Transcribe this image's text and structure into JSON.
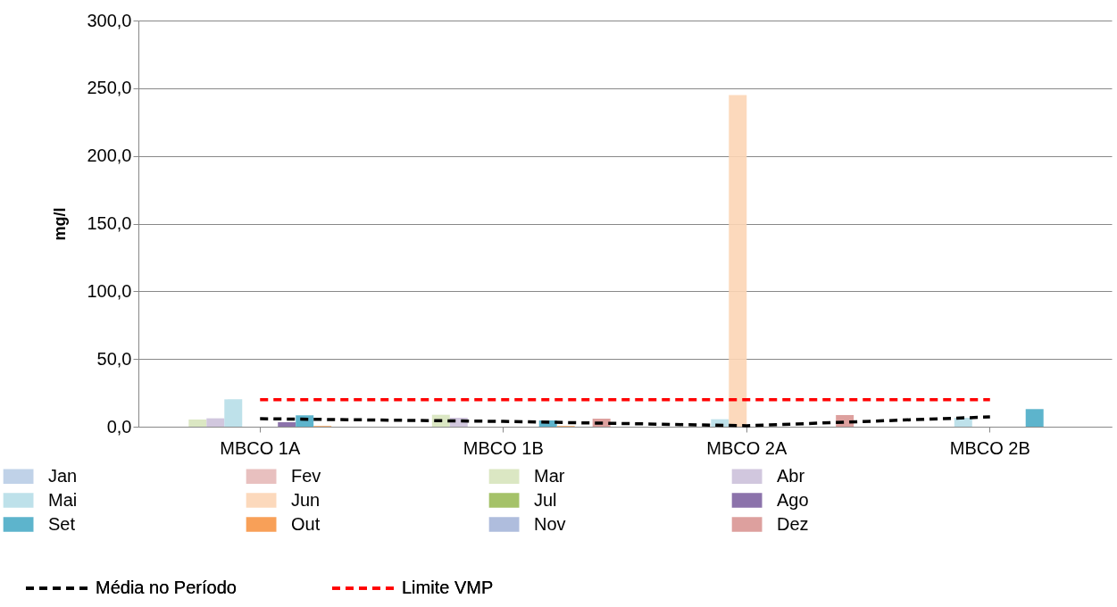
{
  "chart_data": {
    "type": "bar",
    "ylabel": "mg/l",
    "categories": [
      "MBCO 1A",
      "MBCO 1B",
      "MBCO 2A",
      "MBCO 2B"
    ],
    "ylim": [
      0,
      300
    ],
    "yticks": [
      {
        "value": 0,
        "label": "0,0"
      },
      {
        "value": 50,
        "label": "50,0"
      },
      {
        "value": 100,
        "label": "100,0"
      },
      {
        "value": 150,
        "label": "150,0"
      },
      {
        "value": 200,
        "label": "200,0"
      },
      {
        "value": 250,
        "label": "250,0"
      },
      {
        "value": 300,
        "label": "300,0"
      }
    ],
    "grid": "y",
    "legend": "bottom",
    "series": [
      {
        "name": "Jan",
        "color": "#b9cde5",
        "values": [
          null,
          null,
          0,
          0
        ]
      },
      {
        "name": "Fev",
        "color": "#e6b9b8",
        "values": [
          0,
          0,
          0,
          0
        ]
      },
      {
        "name": "Mar",
        "color": "#d7e4bd",
        "values": [
          5.3,
          8.8,
          0,
          0
        ]
      },
      {
        "name": "Abr",
        "color": "#ccc1da",
        "values": [
          6.2,
          6.6,
          0,
          0
        ]
      },
      {
        "name": "Mai",
        "color": "#b7dee8",
        "values": [
          20.2,
          null,
          5.5,
          6.6
        ]
      },
      {
        "name": "Jun",
        "color": "#fcd5b5",
        "values": [
          null,
          0,
          245,
          null
        ]
      },
      {
        "name": "Jul",
        "color": "#9bbb59",
        "values": [
          0,
          0,
          0,
          0
        ]
      },
      {
        "name": "Ago",
        "color": "#8064a2",
        "values": [
          3.3,
          0,
          0,
          0
        ]
      },
      {
        "name": "Set",
        "color": "#4bacc6",
        "values": [
          8.4,
          4.6,
          0,
          13
        ]
      },
      {
        "name": "Out",
        "color": "#f79646",
        "values": [
          0.5,
          0.5,
          0,
          0
        ]
      },
      {
        "name": "Nov",
        "color": "#a6b6d9",
        "values": [
          0,
          0,
          0,
          0
        ]
      },
      {
        "name": "Dez",
        "color": "#d99694",
        "values": [
          0,
          5.9,
          8.6,
          0
        ]
      },
      {
        "name": "Média no Período",
        "type": "line",
        "line_style": "dashed",
        "color": "#000000",
        "values": [
          5.9,
          3.9,
          0.7,
          7.2
        ]
      },
      {
        "name": "Limite VMP",
        "type": "line",
        "line_style": "dashed",
        "color": "#ff0000",
        "values": [
          20,
          20,
          20,
          20
        ]
      }
    ]
  }
}
